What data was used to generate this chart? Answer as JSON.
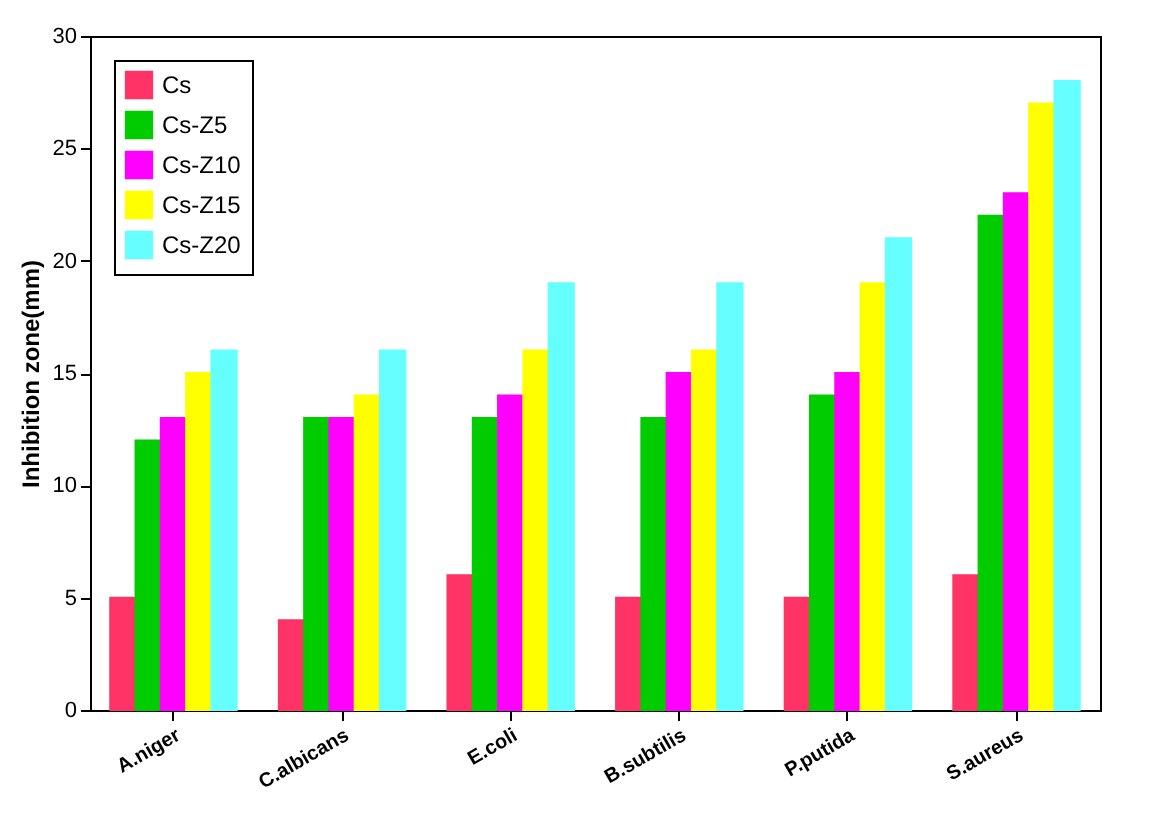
{
  "chart_data": {
    "type": "bar",
    "ylabel": "Inhibition zone(mm)",
    "categories": [
      "A.niger",
      "C.albicans",
      "E.coli",
      "B.subtilis",
      "P.putida",
      "S.aureus"
    ],
    "series": [
      {
        "name": "Cs",
        "color": "#ff3366",
        "values": [
          5,
          4,
          6,
          5,
          5,
          6
        ]
      },
      {
        "name": "Cs-Z5",
        "color": "#00cc00",
        "values": [
          12,
          13,
          13,
          13,
          14,
          22
        ]
      },
      {
        "name": "Cs-Z10",
        "color": "#ff00ff",
        "values": [
          13,
          13,
          14,
          15,
          15,
          23
        ]
      },
      {
        "name": "Cs-Z15",
        "color": "#ffff00",
        "values": [
          15,
          14,
          16,
          16,
          19,
          27
        ]
      },
      {
        "name": "Cs-Z20",
        "color": "#66ffff",
        "values": [
          16,
          16,
          19,
          19,
          21,
          28
        ]
      }
    ],
    "ylim": [
      0,
      30
    ],
    "yticks": [
      0,
      5,
      10,
      15,
      20,
      25,
      30
    ],
    "grid": false,
    "legend": "top left"
  }
}
